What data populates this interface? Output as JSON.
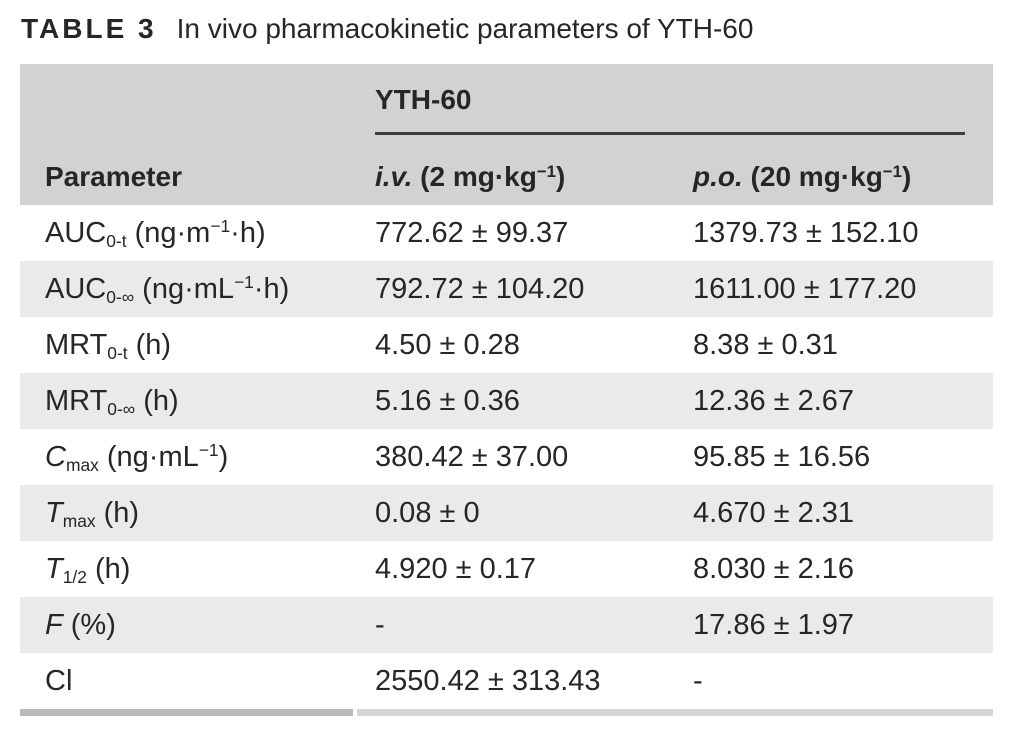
{
  "colors": {
    "header_bg": "#d0d2d3",
    "row_alt_bg": "#e8eaeb",
    "text": "#262626",
    "group_rule": "#3c3c3c",
    "bottom_bar_left": "#b8bbbc",
    "bottom_bar_right": "#d3d5d6"
  },
  "title": {
    "label": "TABLE 3",
    "text": "In vivo pharmacokinetic parameters of YTH-60"
  },
  "table": {
    "group_header": "YTH-60",
    "column_headers": {
      "parameter": "Parameter",
      "iv": [
        {
          "t": "i.v.",
          "s": "i"
        },
        {
          "t": " (2 mg·kg"
        },
        {
          "t": "−1",
          "s": "sup"
        },
        {
          "t": ")"
        }
      ],
      "po": [
        {
          "t": "p.o.",
          "s": "i"
        },
        {
          "t": " (20 mg·kg"
        },
        {
          "t": "−1",
          "s": "sup"
        },
        {
          "t": ")"
        }
      ]
    },
    "rows": [
      {
        "param": [
          {
            "t": "AUC"
          },
          {
            "t": "0-t",
            "s": "sub"
          },
          {
            "t": " (ng·m"
          },
          {
            "t": "−1",
            "s": "sup"
          },
          {
            "t": "·h)"
          }
        ],
        "iv": "772.62 ± 99.37",
        "po": "1379.73 ± 152.10"
      },
      {
        "param": [
          {
            "t": "AUC"
          },
          {
            "t": "0-∞",
            "s": "sub"
          },
          {
            "t": " (ng·mL"
          },
          {
            "t": "−1",
            "s": "sup"
          },
          {
            "t": "·h)"
          }
        ],
        "iv": "792.72 ± 104.20",
        "po": "1611.00 ± 177.20"
      },
      {
        "param": [
          {
            "t": "MRT"
          },
          {
            "t": "0-t",
            "s": "sub"
          },
          {
            "t": " (h)"
          }
        ],
        "iv": "4.50 ± 0.28",
        "po": "8.38 ± 0.31"
      },
      {
        "param": [
          {
            "t": "MRT"
          },
          {
            "t": "0-∞",
            "s": "sub"
          },
          {
            "t": " (h)"
          }
        ],
        "iv": "5.16 ± 0.36",
        "po": "12.36 ± 2.67"
      },
      {
        "param": [
          {
            "t": "C",
            "s": "i"
          },
          {
            "t": "max",
            "s": "sub"
          },
          {
            "t": " (ng·mL"
          },
          {
            "t": "−1",
            "s": "sup"
          },
          {
            "t": ")"
          }
        ],
        "iv": "380.42 ± 37.00",
        "po": "95.85 ± 16.56"
      },
      {
        "param": [
          {
            "t": "T",
            "s": "i"
          },
          {
            "t": "max",
            "s": "sub"
          },
          {
            "t": " (h)"
          }
        ],
        "iv": "0.08 ± 0",
        "po": "4.670 ± 2.31"
      },
      {
        "param": [
          {
            "t": "T",
            "s": "i"
          },
          {
            "t": "1/2",
            "s": "sub"
          },
          {
            "t": " (h)"
          }
        ],
        "iv": "4.920 ± 0.17",
        "po": "8.030 ± 2.16"
      },
      {
        "param": [
          {
            "t": "F",
            "s": "i"
          },
          {
            "t": " (%)"
          }
        ],
        "iv": "-",
        "po": "17.86 ± 1.97"
      },
      {
        "param": [
          {
            "t": "Cl"
          }
        ],
        "iv": "2550.42 ± 313.43",
        "po": "-"
      }
    ]
  }
}
